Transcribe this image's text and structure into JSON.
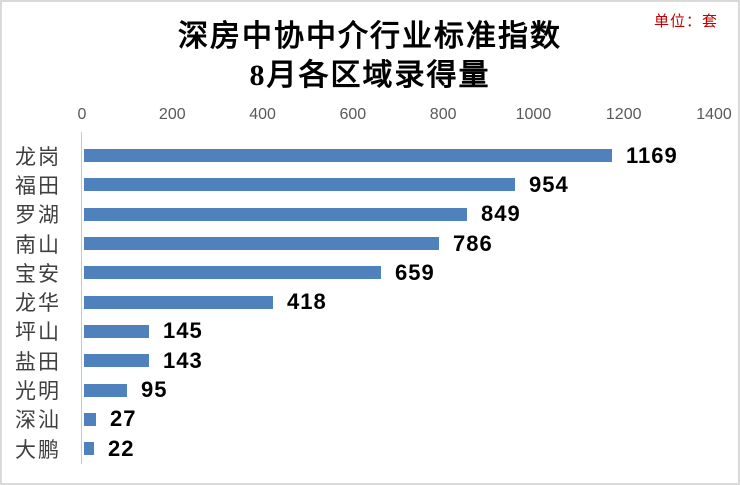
{
  "header": {
    "title_line1": "深房中协中介行业标准指数",
    "title_line2": "8月各区域录得量",
    "unit_label": "单位：套"
  },
  "chart_data": {
    "type": "bar",
    "orientation": "horizontal",
    "title": "深房中协中介行业标准指数 8月各区域录得量",
    "unit": "单位：套",
    "categories": [
      "龙岗",
      "福田",
      "罗湖",
      "南山",
      "宝安",
      "龙华",
      "坪山",
      "盐田",
      "光明",
      "深汕",
      "大鹏"
    ],
    "values": [
      1169,
      954,
      849,
      786,
      659,
      418,
      145,
      143,
      95,
      27,
      22
    ],
    "x_ticks": [
      0,
      200,
      400,
      600,
      800,
      1000,
      1200,
      1400
    ],
    "xlim": [
      0,
      1400
    ],
    "data_labels": true,
    "grid": false,
    "legend": "none"
  },
  "colors": {
    "bar_fill": "#4F81BD",
    "unit_text": "#C00000",
    "tick_text": "#595959",
    "axis_line": "#C9C9C9",
    "value_text": "#000000",
    "category_text": "#3f3f3f",
    "frame_border": "#D9D9D9"
  }
}
